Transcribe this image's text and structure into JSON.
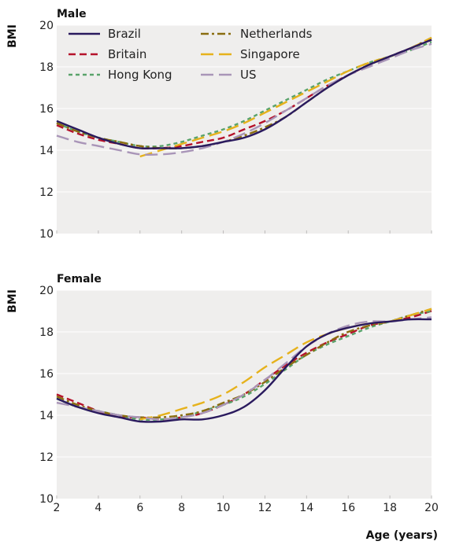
{
  "chart_data": {
    "type": "line",
    "xlabel": "Age (years)",
    "xlim": [
      2,
      20
    ],
    "x_ticks": [
      2,
      4,
      6,
      8,
      10,
      12,
      14,
      16,
      18,
      20
    ],
    "series_styles": [
      {
        "name": "Brazil",
        "color": "#2a1a5e",
        "dash": "solid"
      },
      {
        "name": "Britain",
        "color": "#b5122b",
        "dash": "dashed"
      },
      {
        "name": "Hong Kong",
        "color": "#5aa36b",
        "dash": "dotted-dash"
      },
      {
        "name": "Netherlands",
        "color": "#8a6d10",
        "dash": "dash-dot"
      },
      {
        "name": "Singapore",
        "color": "#e6b21c",
        "dash": "long-dash"
      },
      {
        "name": "US",
        "color": "#a995b8",
        "dash": "long-dash"
      }
    ],
    "panels": [
      {
        "title": "Male",
        "ylabel": "BMI",
        "ylim": [
          10,
          20
        ],
        "y_ticks": [
          10,
          12,
          14,
          16,
          18,
          20
        ],
        "x": [
          2,
          3,
          4,
          5,
          6,
          7,
          8,
          9,
          10,
          11,
          12,
          13,
          14,
          15,
          16,
          17,
          18,
          19,
          20
        ],
        "series": [
          {
            "name": "Brazil",
            "values": [
              15.4,
              15.0,
              14.6,
              14.3,
              14.1,
              14.1,
              14.1,
              14.2,
              14.4,
              14.6,
              15.0,
              15.6,
              16.3,
              17.0,
              17.6,
              18.1,
              18.5,
              18.9,
              19.3
            ]
          },
          {
            "name": "Britain",
            "values": [
              15.2,
              14.8,
              14.5,
              14.3,
              14.1,
              14.1,
              14.2,
              14.4,
              14.6,
              15.0,
              15.4,
              15.9,
              16.5,
              17.1,
              17.6,
              18.1,
              18.5,
              18.9,
              19.3
            ]
          },
          {
            "name": "Hong Kong",
            "values": [
              15.3,
              14.9,
              14.6,
              14.4,
              14.2,
              14.2,
              14.4,
              14.7,
              15.0,
              15.4,
              15.9,
              16.4,
              16.9,
              17.4,
              17.8,
              18.2,
              18.5,
              18.8,
              19.2
            ]
          },
          {
            "name": "Netherlands",
            "values": [
              15.3,
              14.9,
              14.6,
              14.4,
              14.2,
              14.1,
              14.1,
              14.2,
              14.4,
              14.7,
              15.1,
              15.6,
              16.3,
              17.0,
              17.6,
              18.1,
              18.5,
              18.9,
              19.4
            ]
          },
          {
            "name": "Singapore",
            "values": [
              null,
              null,
              null,
              null,
              13.7,
              14.0,
              14.3,
              14.6,
              14.9,
              15.3,
              15.8,
              16.3,
              16.8,
              17.3,
              17.8,
              18.2,
              18.5,
              18.9,
              19.4
            ]
          },
          {
            "name": "US",
            "values": [
              14.7,
              14.4,
              14.2,
              14.0,
              13.8,
              13.8,
              13.9,
              14.1,
              14.4,
              14.8,
              15.3,
              15.9,
              16.5,
              17.1,
              17.6,
              18.0,
              18.4,
              18.8,
              19.1
            ]
          }
        ],
        "legend": "top-left"
      },
      {
        "title": "Female",
        "ylabel": "BMI",
        "ylim": [
          10,
          20
        ],
        "y_ticks": [
          10,
          12,
          14,
          16,
          18,
          20
        ],
        "x": [
          2,
          3,
          4,
          5,
          6,
          7,
          8,
          9,
          10,
          11,
          12,
          13,
          14,
          15,
          16,
          17,
          18,
          19,
          20
        ],
        "series": [
          {
            "name": "Brazil",
            "values": [
              14.8,
              14.4,
              14.1,
              13.9,
              13.7,
              13.7,
              13.8,
              13.8,
              14.0,
              14.4,
              15.2,
              16.3,
              17.3,
              17.9,
              18.2,
              18.4,
              18.5,
              18.6,
              18.6
            ]
          },
          {
            "name": "Britain",
            "values": [
              15.0,
              14.6,
              14.2,
              13.9,
              13.9,
              13.8,
              13.9,
              14.1,
              14.5,
              15.0,
              15.7,
              16.4,
              17.0,
              17.5,
              17.9,
              18.3,
              18.5,
              18.7,
              19.0
            ]
          },
          {
            "name": "Hong Kong",
            "values": [
              14.8,
              14.4,
              14.2,
              14.0,
              13.8,
              13.8,
              13.9,
              14.2,
              14.5,
              14.9,
              15.5,
              16.2,
              16.9,
              17.4,
              17.8,
              18.2,
              18.5,
              18.8,
              19.0
            ]
          },
          {
            "name": "Netherlands",
            "values": [
              14.9,
              14.5,
              14.2,
              14.0,
              13.9,
              13.9,
              14.0,
              14.2,
              14.6,
              15.0,
              15.6,
              16.3,
              16.9,
              17.5,
              18.0,
              18.3,
              18.5,
              18.8,
              19.1
            ]
          },
          {
            "name": "Singapore",
            "values": [
              null,
              null,
              null,
              null,
              13.8,
              14.0,
              14.3,
              14.6,
              15.0,
              15.6,
              16.3,
              16.9,
              17.5,
              17.9,
              18.2,
              18.4,
              18.5,
              18.8,
              19.1
            ]
          },
          {
            "name": "US",
            "values": [
              14.6,
              14.4,
              14.2,
              14.0,
              13.9,
              13.8,
              13.9,
              14.1,
              14.5,
              15.0,
              15.7,
              16.5,
              17.3,
              17.9,
              18.3,
              18.5,
              18.5,
              18.6,
              18.7
            ]
          }
        ]
      }
    ]
  }
}
